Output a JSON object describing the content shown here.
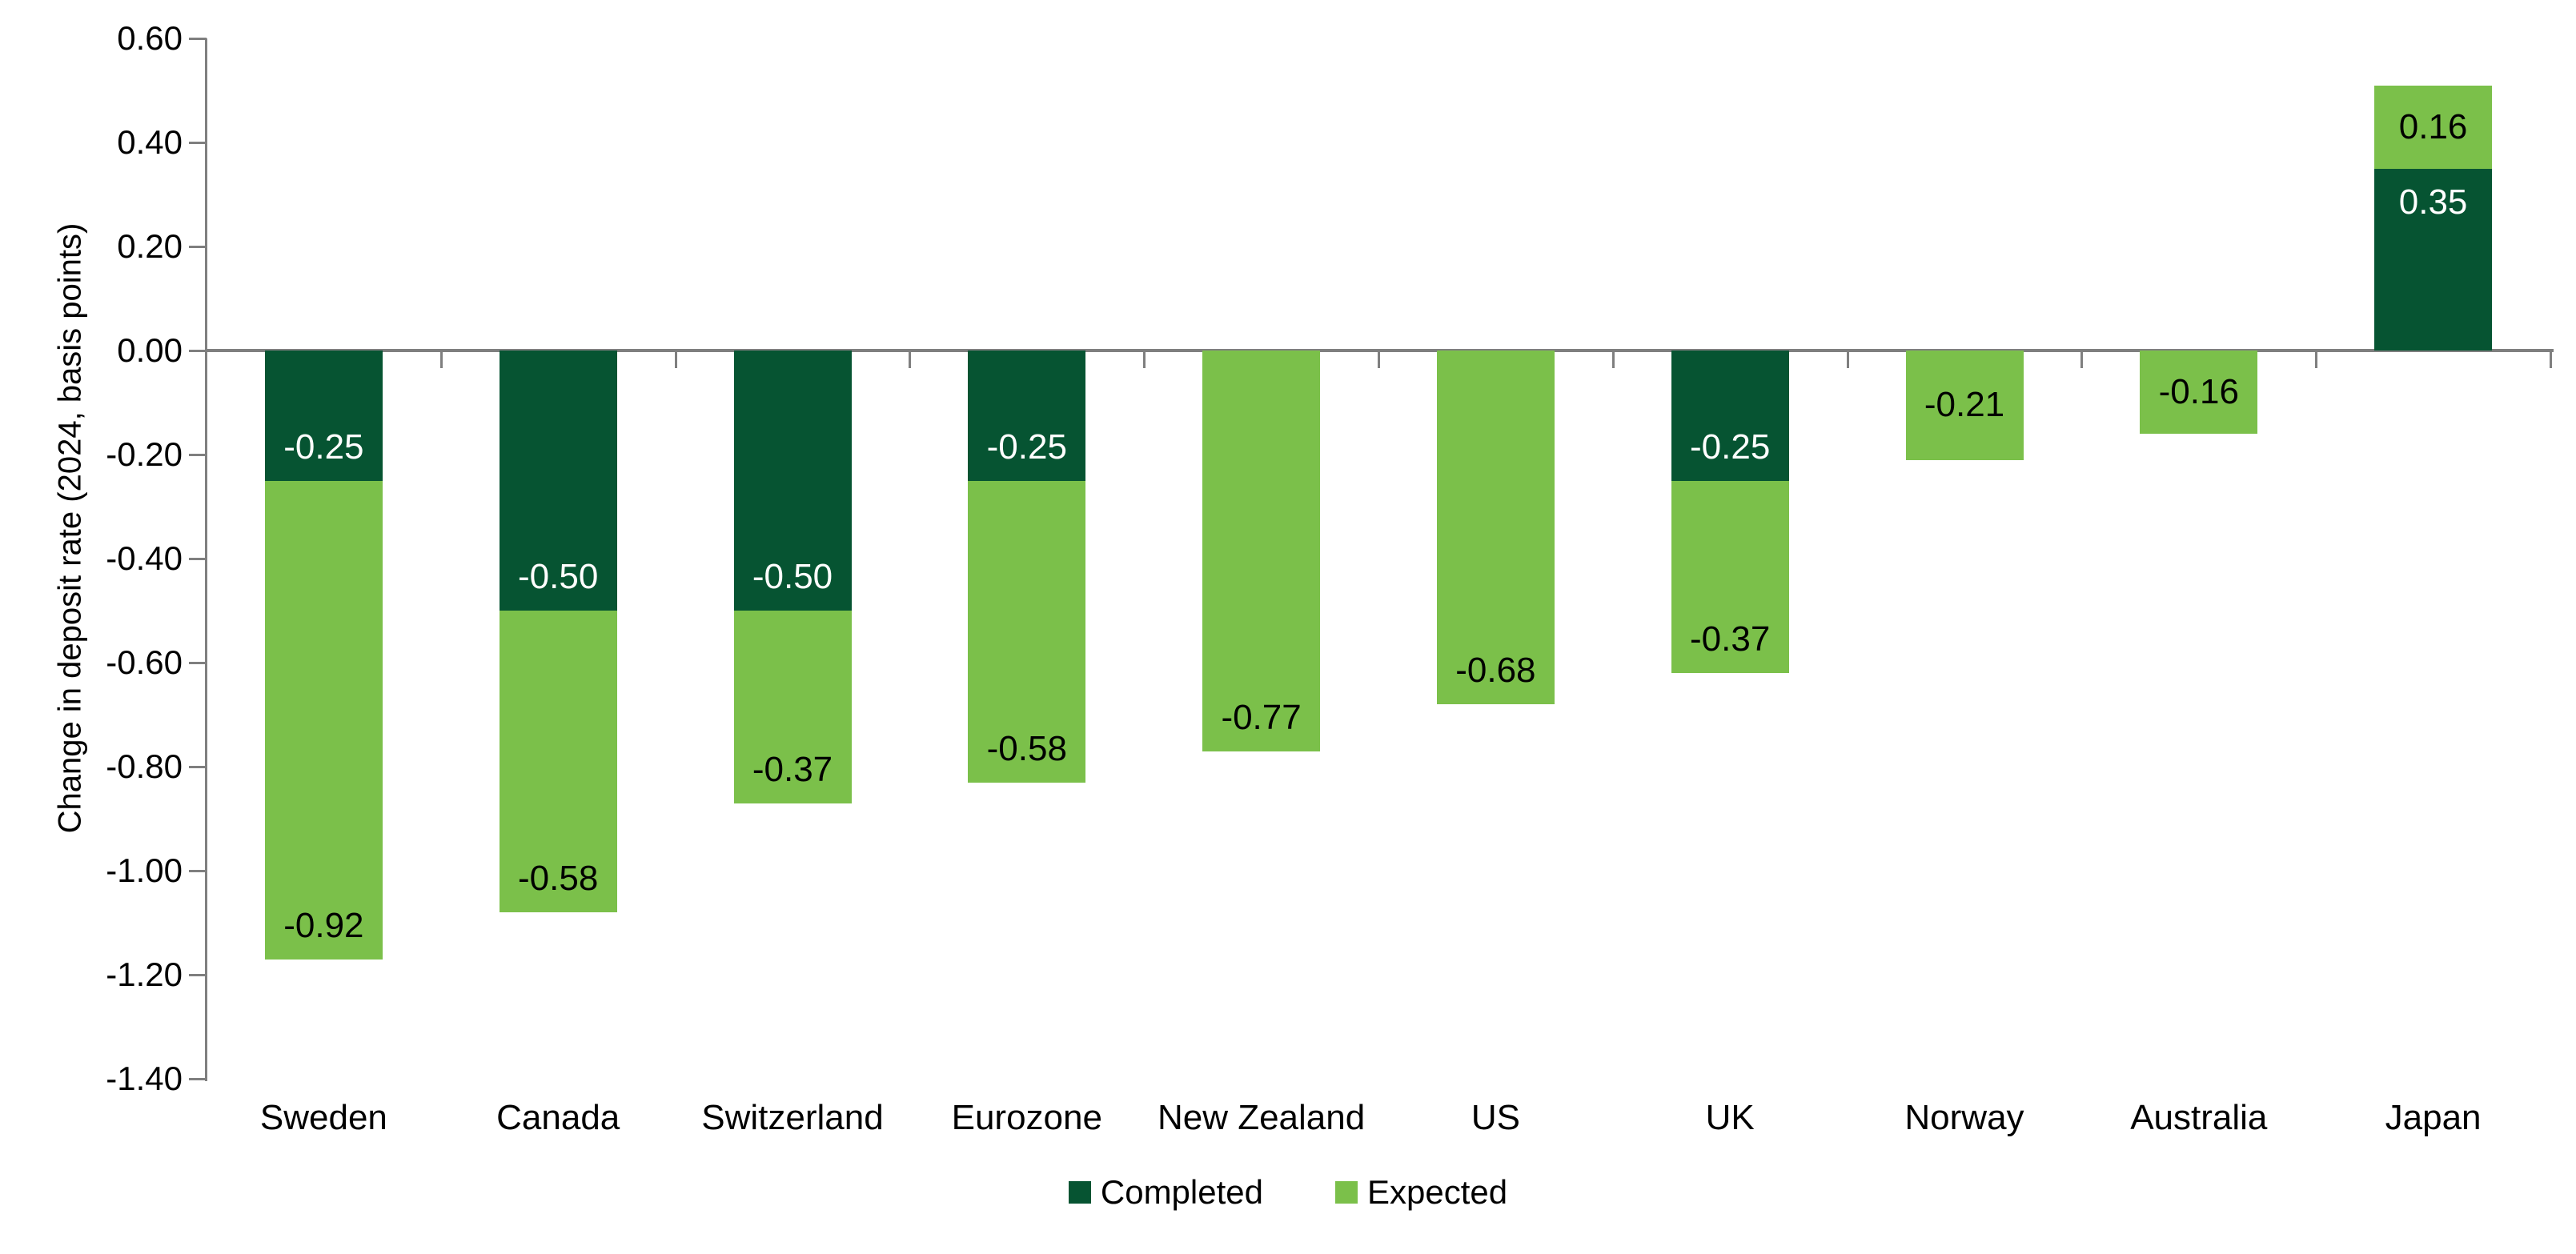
{
  "chart_data": {
    "type": "bar",
    "stacked": true,
    "title": "",
    "ylabel": "Change in deposit rate (2024, basis points)",
    "xlabel": "",
    "categories": [
      "Sweden",
      "Canada",
      "Switzerland",
      "Eurozone",
      "New Zealand",
      "US",
      "UK",
      "Norway",
      "Australia",
      "Japan"
    ],
    "series": [
      {
        "name": "Completed",
        "color": "#065432",
        "label_color": "#FFFFFF",
        "values": [
          -0.25,
          -0.5,
          -0.5,
          -0.25,
          0,
          0,
          -0.25,
          0,
          0,
          0.35
        ]
      },
      {
        "name": "Expected",
        "color": "#7BC04A",
        "label_color": "#000000",
        "values": [
          -0.92,
          -0.58,
          -0.37,
          -0.58,
          -0.77,
          -0.68,
          -0.37,
          -0.21,
          -0.16,
          0.16
        ]
      }
    ],
    "y_ticks": [
      "0.60",
      "0.40",
      "0.20",
      "0.00",
      "-0.20",
      "-0.40",
      "-0.60",
      "-0.80",
      "-1.00",
      "-1.20",
      "-1.40"
    ],
    "ylim": [
      -1.4,
      0.6
    ],
    "grid": "zero-baseline-only",
    "legend_position": "bottom",
    "axis_color": "#7F7F7F",
    "label_format": "2-decimals"
  }
}
